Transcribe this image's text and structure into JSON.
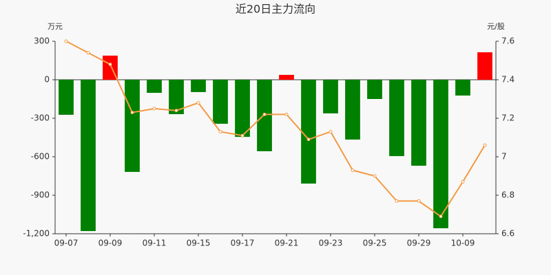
{
  "chart_data": {
    "type": "bar",
    "title": "近20日主力流向",
    "y_unit": "万元",
    "y2_unit": "元/股",
    "categories": [
      "09-07",
      null,
      "09-09",
      null,
      "09-11",
      null,
      "09-15",
      null,
      "09-17",
      null,
      "09-21",
      null,
      "09-23",
      null,
      "09-25",
      null,
      "09-29",
      null,
      "10-09",
      null
    ],
    "series": [
      {
        "type": "bar",
        "color": "#008000",
        "positive_color": "#ff0000",
        "values": [
          -273,
          -1179,
          188,
          -718,
          -102,
          -268,
          -96,
          -343,
          -445,
          -557,
          38,
          -809,
          -262,
          -466,
          -150,
          -595,
          -670,
          -1157,
          -123,
          214
        ]
      },
      {
        "type": "line",
        "axis": "y2",
        "color": "#f39a43",
        "values": [
          7.6,
          7.54,
          7.48,
          7.23,
          7.25,
          7.24,
          7.28,
          7.13,
          7.11,
          7.22,
          7.22,
          7.09,
          7.13,
          6.93,
          6.9,
          6.77,
          6.77,
          6.69,
          6.87,
          7.06
        ]
      }
    ],
    "ylim": [
      -1200,
      300
    ],
    "yticks": [
      {
        "value": -1200,
        "label": "-1,200"
      },
      -900,
      -600,
      -300,
      0,
      300
    ],
    "y2lim": [
      6.6,
      7.6
    ],
    "y2ticks": [
      6.6,
      6.8,
      7,
      7.2,
      7.4,
      7.6
    ]
  }
}
